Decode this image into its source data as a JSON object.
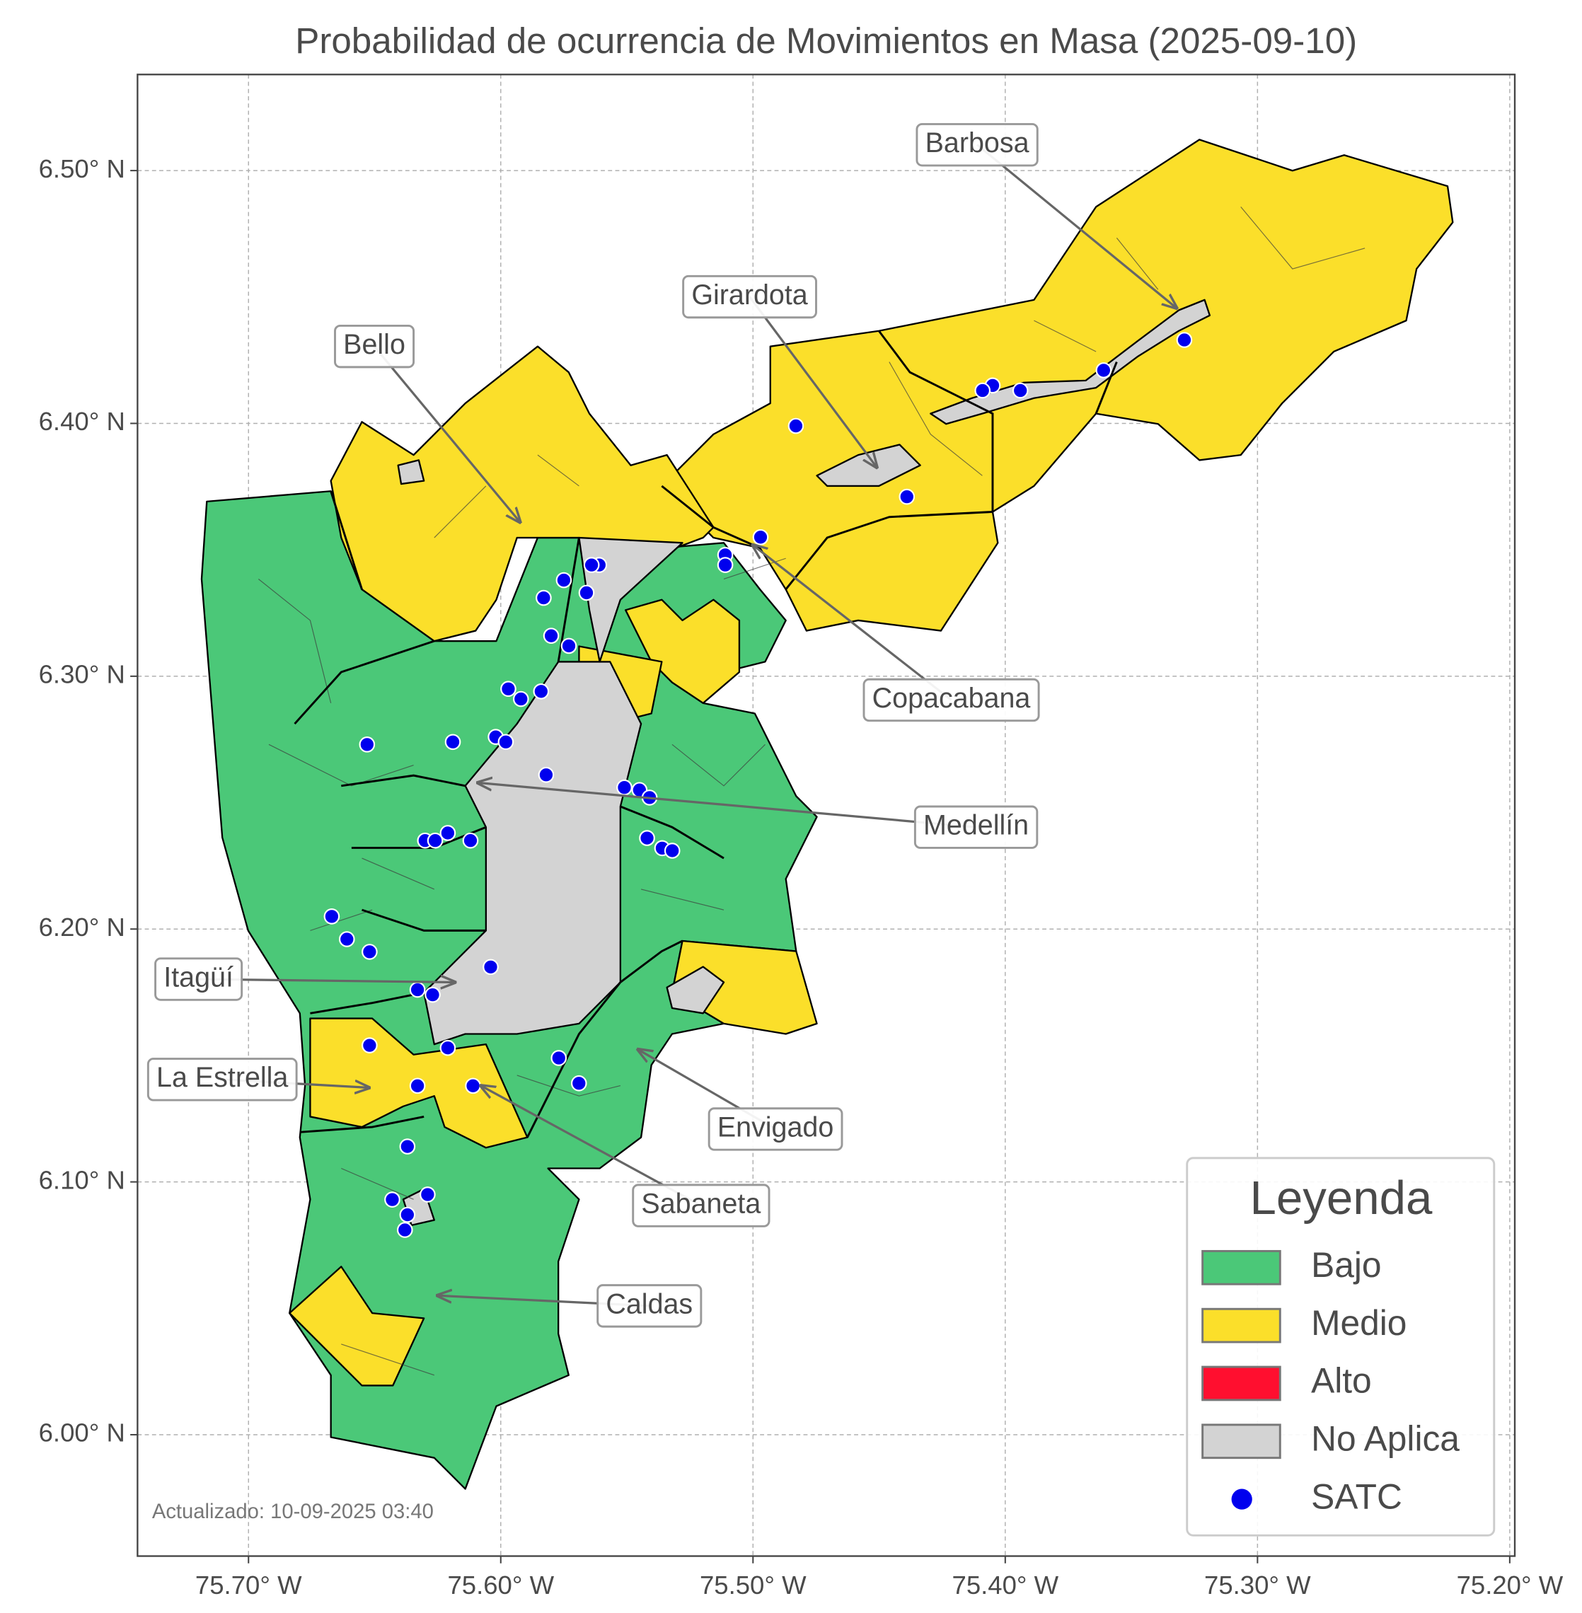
{
  "map": {
    "title": "Probabilidad de ocurrencia de Movimientos en Masa (2025-09-10)",
    "xlim": [
      -75.744,
      -75.198
    ],
    "ylim": [
      5.952,
      6.538
    ],
    "xticks": [
      {
        "value": -75.7,
        "label": "75.70° W"
      },
      {
        "value": -75.6,
        "label": "75.60° W"
      },
      {
        "value": -75.5,
        "label": "75.50° W"
      },
      {
        "value": -75.4,
        "label": "75.40° W"
      },
      {
        "value": -75.3,
        "label": "75.30° W"
      },
      {
        "value": -75.2,
        "label": "75.20° W"
      }
    ],
    "yticks": [
      {
        "value": 6.0,
        "label": "6.00° N"
      },
      {
        "value": 6.1,
        "label": "6.10° N"
      },
      {
        "value": 6.2,
        "label": "6.20° N"
      },
      {
        "value": 6.3,
        "label": "6.30° N"
      },
      {
        "value": 6.4,
        "label": "6.40° N"
      },
      {
        "value": 6.5,
        "label": "6.50° N"
      }
    ],
    "grid": true,
    "annotations": [
      "Barbosa",
      "Girardota",
      "Bello",
      "Copacabana",
      "Medellín",
      "Itagüí",
      "La Estrella",
      "Envigado",
      "Sabaneta",
      "Caldas"
    ],
    "legend": {
      "title": "Leyenda",
      "items": [
        {
          "label": "Bajo",
          "color": "#4bc878"
        },
        {
          "label": "Medio",
          "color": "#fbdf2a"
        },
        {
          "label": "Alto",
          "color": "#ff0f2f"
        },
        {
          "label": "No Aplica",
          "color": "#d3d3d3"
        },
        {
          "label": "SATC",
          "color": "#0000ee"
        }
      ]
    },
    "satc": {
      "lon": [
        -75.329,
        -75.361,
        -75.394,
        -75.405,
        -75.409,
        -75.483,
        -75.439,
        -75.497,
        -75.511,
        -75.511,
        -75.561,
        -75.564,
        -75.575,
        -75.566,
        -75.583,
        -75.58,
        -75.573,
        -75.597,
        -75.592,
        -75.584,
        -75.619,
        -75.602,
        -75.598,
        -75.653,
        -75.582,
        -75.551,
        -75.545,
        -75.541,
        -75.542,
        -75.536,
        -75.532,
        -75.621,
        -75.612,
        -75.63,
        -75.626,
        -75.667,
        -75.661,
        -75.652,
        -75.604,
        -75.633,
        -75.627,
        -75.621,
        -75.652,
        -75.577,
        -75.569,
        -75.633,
        -75.611,
        -75.637,
        -75.643,
        -75.629,
        -75.637,
        -75.638
      ],
      "lat": [
        6.433,
        6.421,
        6.413,
        6.415,
        6.413,
        6.399,
        6.371,
        6.355,
        6.348,
        6.344,
        6.344,
        6.344,
        6.338,
        6.333,
        6.331,
        6.316,
        6.312,
        6.295,
        6.291,
        6.294,
        6.274,
        6.276,
        6.274,
        6.273,
        6.261,
        6.256,
        6.255,
        6.252,
        6.236,
        6.232,
        6.231,
        6.238,
        6.235,
        6.235,
        6.235,
        6.205,
        6.196,
        6.191,
        6.185,
        6.176,
        6.174,
        6.153,
        6.154,
        6.149,
        6.139,
        6.138,
        6.138,
        6.114,
        6.093,
        6.095,
        6.087,
        6.081
      ]
    },
    "updated": "Actualizado: 10-09-2025 03:40"
  }
}
